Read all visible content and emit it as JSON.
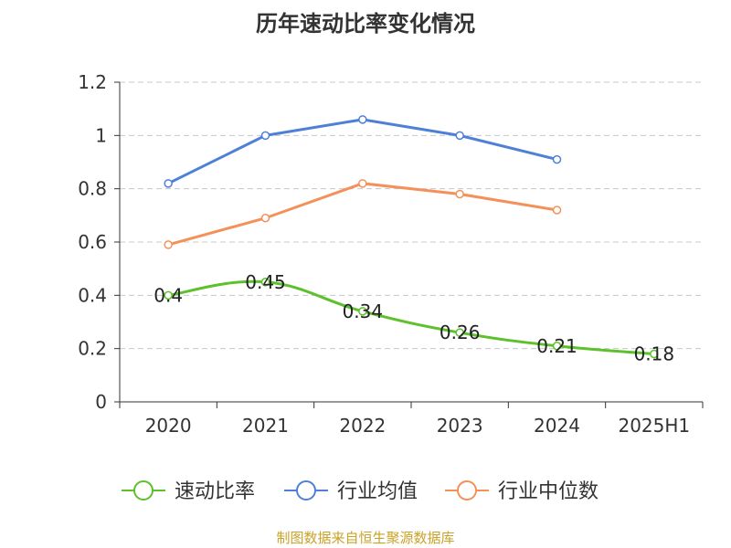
{
  "chart_data": {
    "type": "line",
    "title": "历年速动比率变化情况",
    "categories": [
      "2020",
      "2021",
      "2022",
      "2023",
      "2024",
      "2025H1"
    ],
    "ylim": [
      0,
      1.2
    ],
    "yticks": [
      "0",
      "0.2",
      "0.4",
      "0.6",
      "0.8",
      "1",
      "1.2"
    ],
    "grid": true,
    "legend_position": "bottom",
    "series": [
      {
        "name": "速动比率",
        "color": "#5cc12a",
        "values": [
          0.4,
          0.45,
          0.34,
          0.26,
          0.21,
          0.18
        ],
        "labels": [
          "0.4",
          "0.45",
          "0.34",
          "0.26",
          "0.21",
          "0.18"
        ]
      },
      {
        "name": "行业均值",
        "color": "#4e80d8",
        "values": [
          0.82,
          1.0,
          1.06,
          1.0,
          0.91,
          null
        ]
      },
      {
        "name": "行业中位数",
        "color": "#f4915a",
        "values": [
          0.59,
          0.69,
          0.82,
          0.78,
          0.72,
          null
        ]
      }
    ]
  },
  "source_note": "制图数据来自恒生聚源数据库"
}
